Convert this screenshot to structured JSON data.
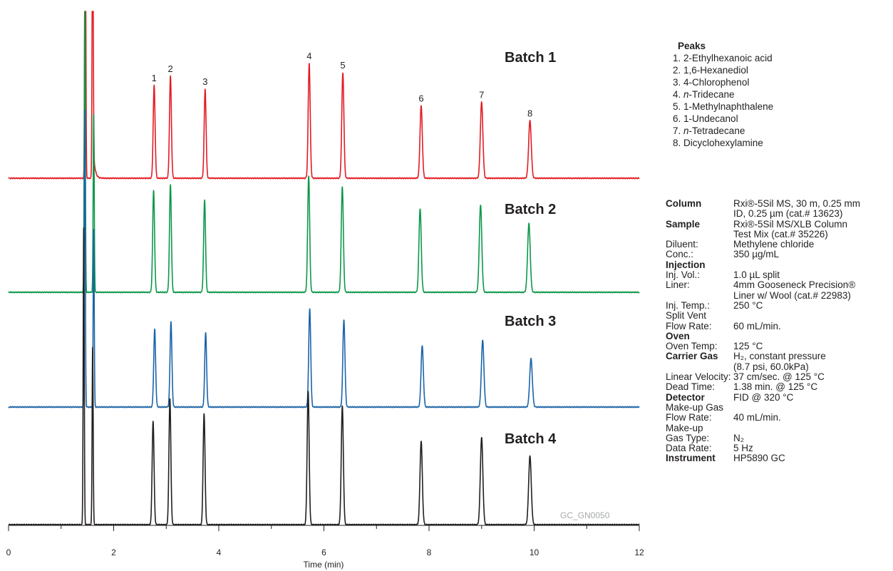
{
  "chart_data": {
    "type": "line",
    "xlabel": "Time (min)",
    "xlim": [
      0,
      12
    ],
    "x_ticks": [
      "0",
      "2",
      "4",
      "6",
      "8",
      "10",
      "12"
    ],
    "watermark": "GC_GN0050",
    "peak_labels": [
      {
        "label": "1",
        "x": 2.77
      },
      {
        "label": "2",
        "x": 3.08
      },
      {
        "label": "3",
        "x": 3.74
      },
      {
        "label": "4",
        "x": 5.72
      },
      {
        "label": "5",
        "x": 6.36
      },
      {
        "label": "6",
        "x": 7.85
      },
      {
        "label": "7",
        "x": 9.0
      },
      {
        "label": "8",
        "x": 9.92
      }
    ],
    "series": [
      {
        "name": "Batch 1",
        "color": "#e31b23",
        "solvent_peaks": [
          {
            "x": 1.46,
            "h": 1.0,
            "w": 0.01
          },
          {
            "x": 1.6,
            "h": 1.0,
            "w": 0.01
          }
        ],
        "peaks": [
          {
            "x": 2.77,
            "h": 0.5,
            "w": 0.018
          },
          {
            "x": 3.08,
            "h": 0.55,
            "w": 0.018
          },
          {
            "x": 3.74,
            "h": 0.48,
            "w": 0.018
          },
          {
            "x": 5.72,
            "h": 0.62,
            "w": 0.019
          },
          {
            "x": 6.36,
            "h": 0.57,
            "w": 0.02
          },
          {
            "x": 7.85,
            "h": 0.39,
            "w": 0.022
          },
          {
            "x": 9.0,
            "h": 0.41,
            "w": 0.024
          },
          {
            "x": 9.92,
            "h": 0.31,
            "w": 0.025
          }
        ]
      },
      {
        "name": "Batch 2",
        "color": "#0c9848",
        "solvent_peaks": [
          {
            "x": 1.45,
            "h": 1.0,
            "w": 0.01
          },
          {
            "x": 1.62,
            "h": 0.6,
            "w": 0.01
          }
        ],
        "peaks": [
          {
            "x": 2.76,
            "h": 0.55,
            "w": 0.018
          },
          {
            "x": 3.08,
            "h": 0.58,
            "w": 0.018
          },
          {
            "x": 3.73,
            "h": 0.5,
            "w": 0.018
          },
          {
            "x": 5.71,
            "h": 0.63,
            "w": 0.019
          },
          {
            "x": 6.35,
            "h": 0.57,
            "w": 0.02
          },
          {
            "x": 7.83,
            "h": 0.45,
            "w": 0.022
          },
          {
            "x": 8.98,
            "h": 0.47,
            "w": 0.024
          },
          {
            "x": 9.9,
            "h": 0.37,
            "w": 0.025
          }
        ]
      },
      {
        "name": "Batch 3",
        "color": "#1b64a8",
        "solvent_peaks": [
          {
            "x": 1.45,
            "h": 1.0,
            "w": 0.01
          },
          {
            "x": 1.62,
            "h": 0.6,
            "w": 0.01
          }
        ],
        "peaks": [
          {
            "x": 2.78,
            "h": 0.42,
            "w": 0.018
          },
          {
            "x": 3.09,
            "h": 0.46,
            "w": 0.018
          },
          {
            "x": 3.75,
            "h": 0.4,
            "w": 0.018
          },
          {
            "x": 5.73,
            "h": 0.53,
            "w": 0.019
          },
          {
            "x": 6.38,
            "h": 0.47,
            "w": 0.02
          },
          {
            "x": 7.87,
            "h": 0.33,
            "w": 0.022
          },
          {
            "x": 9.02,
            "h": 0.36,
            "w": 0.024
          },
          {
            "x": 9.94,
            "h": 0.26,
            "w": 0.025
          }
        ]
      },
      {
        "name": "Batch 4",
        "color": "#231f20",
        "solvent_peaks": [
          {
            "x": 1.43,
            "h": 1.0,
            "w": 0.01
          },
          {
            "x": 1.6,
            "h": 0.6,
            "w": 0.01
          }
        ],
        "peaks": [
          {
            "x": 2.75,
            "h": 0.56,
            "w": 0.018
          },
          {
            "x": 3.07,
            "h": 0.68,
            "w": 0.018
          },
          {
            "x": 3.72,
            "h": 0.6,
            "w": 0.018
          },
          {
            "x": 5.7,
            "h": 0.72,
            "w": 0.019
          },
          {
            "x": 6.35,
            "h": 0.64,
            "w": 0.02
          },
          {
            "x": 7.85,
            "h": 0.45,
            "w": 0.022
          },
          {
            "x": 9.0,
            "h": 0.47,
            "w": 0.024
          },
          {
            "x": 9.92,
            "h": 0.37,
            "w": 0.025
          }
        ]
      }
    ]
  },
  "legend": {
    "title": "Peaks",
    "items": [
      {
        "num": "1.",
        "pre": "",
        "ital": "",
        "post": "2-Ethylhexanoic acid"
      },
      {
        "num": "2.",
        "pre": "",
        "ital": "",
        "post": "1,6-Hexanediol"
      },
      {
        "num": "3.",
        "pre": "",
        "ital": "",
        "post": "4-Chlorophenol"
      },
      {
        "num": "4.",
        "pre": "",
        "ital": "n",
        "post": "-Tridecane"
      },
      {
        "num": "5.",
        "pre": "",
        "ital": "",
        "post": "1-Methylnaphthalene"
      },
      {
        "num": "6.",
        "pre": "",
        "ital": "",
        "post": "1-Undecanol"
      },
      {
        "num": "7.",
        "pre": "",
        "ital": "n",
        "post": "-Tetradecane"
      },
      {
        "num": "8.",
        "pre": "",
        "ital": "",
        "post": "Dicyclohexylamine"
      }
    ]
  },
  "conditions": [
    {
      "k": "Column",
      "v": "Rxi®-5Sil MS, 30 m, 0.25 mm\nID, 0.25 µm (cat.# 13623)",
      "section": true
    },
    {
      "k": "Sample",
      "v": "Rxi®-5Sil MS/XLB Column\nTest Mix (cat.# 35226)",
      "section": true
    },
    {
      "k": "Diluent:",
      "v": "Methylene chloride",
      "section": false
    },
    {
      "k": "Conc.:",
      "v": "350 µg/mL",
      "section": false
    },
    {
      "k": "Injection",
      "v": "",
      "section": true
    },
    {
      "k": "Inj. Vol.:",
      "v": "1.0 µL split",
      "section": false
    },
    {
      "k": "Liner:",
      "v": "4mm Gooseneck Precision®\nLiner w/ Wool (cat.# 22983)",
      "section": false
    },
    {
      "k": "Inj. Temp.:",
      "v": "250 °C",
      "section": false
    },
    {
      "k": "Split Vent",
      "v": "",
      "section": false
    },
    {
      "k": "Flow Rate:",
      "v": "60 mL/min.",
      "section": false
    },
    {
      "k": "Oven",
      "v": "",
      "section": true
    },
    {
      "k": "Oven Temp:",
      "v": "125 °C",
      "section": false
    },
    {
      "k": "Carrier Gas",
      "v": "H₂, constant pressure\n(8.7 psi, 60.0kPa)",
      "section": true
    },
    {
      "k": "Linear Velocity:",
      "v": "37 cm/sec. @ 125 °C",
      "section": false
    },
    {
      "k": "Dead Time:",
      "v": "1.38 min. @ 125 °C",
      "section": false
    },
    {
      "k": "Detector",
      "v": "FID @ 320 °C",
      "section": true
    },
    {
      "k": "Make-up Gas",
      "v": "",
      "section": false
    },
    {
      "k": "Flow Rate:",
      "v": "40 mL/min.",
      "section": false
    },
    {
      "k": "Make-up",
      "v": "",
      "section": false
    },
    {
      "k": "Gas Type:",
      "v": "N₂",
      "section": false
    },
    {
      "k": "Data Rate:",
      "v": "5 Hz",
      "section": false
    },
    {
      "k": "Instrument",
      "v": "HP5890 GC",
      "section": true
    }
  ]
}
